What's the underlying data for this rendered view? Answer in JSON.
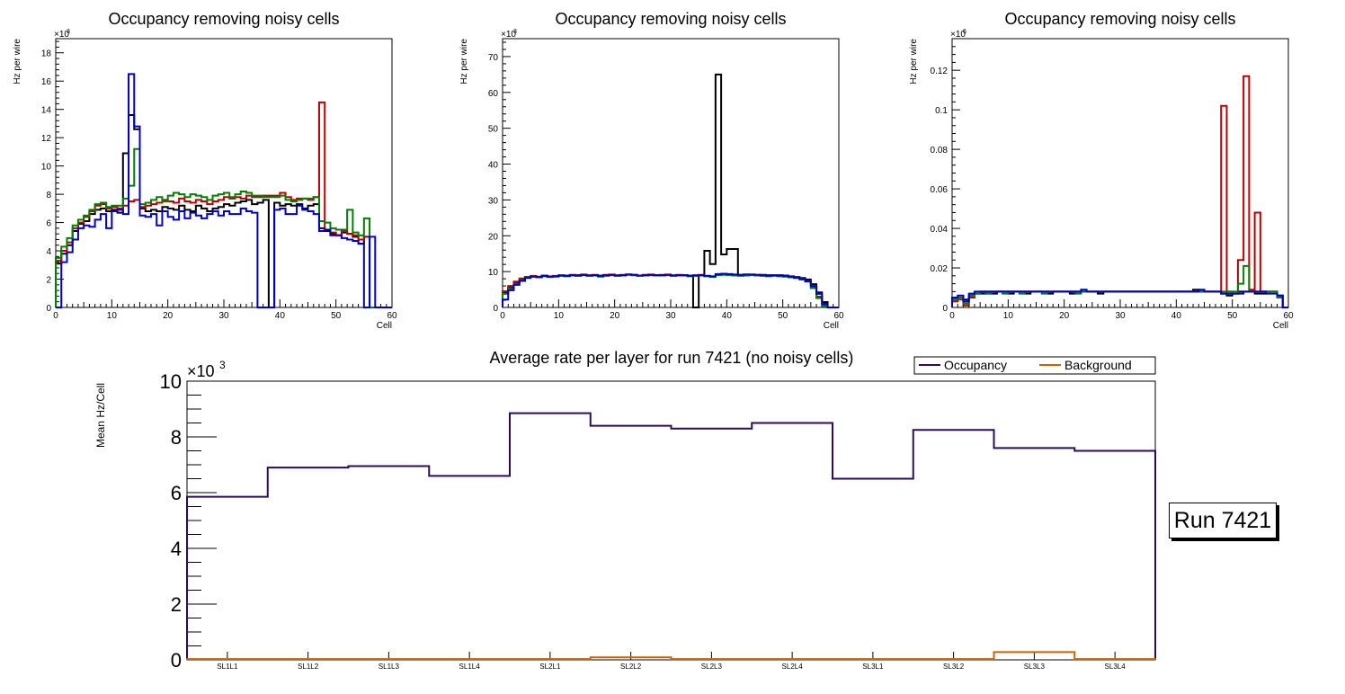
{
  "chart_data": [
    {
      "type": "step",
      "title": "Occupancy removing noisy cells",
      "xlabel": "Cell",
      "ylabel": "Hz per wire",
      "exponent_label": "×10",
      "exponent": "3",
      "xlim": [
        0,
        60
      ],
      "ylim": [
        0,
        19
      ],
      "xticks": [
        "0",
        "10",
        "20",
        "30",
        "40",
        "50",
        "60"
      ],
      "yticks": [
        "0",
        "2",
        "4",
        "6",
        "8",
        "10",
        "12",
        "14",
        "16",
        "18"
      ],
      "ytick_values": [
        0,
        2,
        4,
        6,
        8,
        10,
        12,
        14,
        16,
        18
      ],
      "series": [
        {
          "name": "layer1",
          "color": "#000000",
          "values": [
            3.1,
            3.8,
            4.4,
            5.4,
            5.9,
            6.1,
            6.6,
            6.9,
            7.0,
            6.8,
            6.9,
            6.7,
            10.9,
            13.6,
            12.6,
            7.0,
            6.8,
            6.9,
            6.8,
            7.1,
            7.0,
            6.9,
            7.2,
            6.9,
            6.8,
            7.2,
            7.0,
            6.8,
            7.0,
            7.1,
            7.3,
            7.2,
            7.4,
            7.5,
            7.6,
            7.3,
            7.4,
            7.6,
            0,
            7.4,
            7.2,
            7.3,
            7.2,
            7.3,
            7.0,
            7.2,
            7.3,
            5.6,
            5.4,
            5.2,
            5.1,
            5.3,
            5.2,
            5.0,
            4.5,
            5.0,
            0,
            0,
            0,
            0
          ]
        },
        {
          "name": "layer2",
          "color": "#c00000",
          "values": [
            3.3,
            4.0,
            4.6,
            5.6,
            6.0,
            6.4,
            6.8,
            7.2,
            7.3,
            7.0,
            7.1,
            7.0,
            7.2,
            7.5,
            7.6,
            7.1,
            7.2,
            7.3,
            7.4,
            7.6,
            7.5,
            7.4,
            7.7,
            7.5,
            7.4,
            7.6,
            7.5,
            7.3,
            7.5,
            7.6,
            7.8,
            7.7,
            7.8,
            7.7,
            7.9,
            7.8,
            7.8,
            7.9,
            7.9,
            7.9,
            8.1,
            7.8,
            7.6,
            7.7,
            7.7,
            7.6,
            7.8,
            14.5,
            5.5,
            5.3,
            5.1,
            5.4,
            5.2,
            5.1,
            4.8,
            5.0,
            0,
            0,
            0,
            0
          ]
        },
        {
          "name": "layer3",
          "color": "#008000",
          "values": [
            3.5,
            4.3,
            4.9,
            5.8,
            6.2,
            6.5,
            6.9,
            7.3,
            7.4,
            7.1,
            7.2,
            7.2,
            7.7,
            8.6,
            11.2,
            7.3,
            7.4,
            7.6,
            7.8,
            7.5,
            7.9,
            8.1,
            8.0,
            7.8,
            8.0,
            7.9,
            7.8,
            7.6,
            7.9,
            8.0,
            8.1,
            7.8,
            8.0,
            8.2,
            8.1,
            7.9,
            7.9,
            7.8,
            7.8,
            7.8,
            7.9,
            7.6,
            7.5,
            7.6,
            7.7,
            7.7,
            7.8,
            6.1,
            6.0,
            5.6,
            5.5,
            5.5,
            6.9,
            5.3,
            5.1,
            6.3,
            0,
            0,
            0,
            0
          ]
        },
        {
          "name": "layer4",
          "color": "#0000cc",
          "values": [
            0,
            3.2,
            3.9,
            4.8,
            5.6,
            5.8,
            5.7,
            6.2,
            6.6,
            5.6,
            6.8,
            6.9,
            6.6,
            16.5,
            12.8,
            6.5,
            6.4,
            6.6,
            5.8,
            6.8,
            6.4,
            6.2,
            6.8,
            6.3,
            6.7,
            6.5,
            6.3,
            6.6,
            6.8,
            6.5,
            6.8,
            6.6,
            6.6,
            7.0,
            6.8,
            6.7,
            0,
            0,
            0,
            6.9,
            7.0,
            6.6,
            6.6,
            7.2,
            6.9,
            6.8,
            6.6,
            5.4,
            5.5,
            5.1,
            5.1,
            4.9,
            4.8,
            4.7,
            4.5,
            0,
            5.0,
            0,
            0,
            0
          ]
        }
      ]
    },
    {
      "type": "step",
      "title": "Occupancy removing noisy cells",
      "xlabel": "Cell",
      "ylabel": "Hz per wire",
      "exponent_label": "×10",
      "exponent": "3",
      "xlim": [
        0,
        60
      ],
      "ylim": [
        0,
        75
      ],
      "xticks": [
        "0",
        "10",
        "20",
        "30",
        "40",
        "50",
        "60"
      ],
      "yticks": [
        "0",
        "10",
        "20",
        "30",
        "40",
        "50",
        "60",
        "70"
      ],
      "ytick_values": [
        0,
        10,
        20,
        30,
        40,
        50,
        60,
        70
      ],
      "series": [
        {
          "name": "layer1",
          "color": "#000000",
          "values": [
            4.0,
            5.5,
            6.8,
            7.8,
            8.5,
            8.7,
            8.5,
            8.8,
            8.6,
            8.7,
            8.9,
            8.8,
            9.0,
            9.0,
            9.1,
            8.9,
            9.0,
            8.8,
            9.0,
            9.1,
            8.9,
            9.0,
            9.2,
            9.1,
            8.9,
            9.0,
            9.1,
            9.0,
            9.0,
            9.1,
            8.9,
            9.0,
            9.0,
            8.8,
            0,
            8.9,
            15.8,
            12.1,
            65.0,
            14.8,
            16.3,
            16.3,
            9.1,
            9.2,
            9.1,
            9.0,
            9.1,
            9.0,
            8.9,
            9.0,
            8.9,
            8.7,
            8.5,
            8.2,
            7.8,
            6.5,
            4.2,
            1.5,
            0,
            0
          ]
        },
        {
          "name": "layer2",
          "color": "#c00000",
          "values": [
            4.5,
            6.0,
            7.2,
            8.1,
            8.5,
            8.8,
            8.6,
            8.9,
            8.7,
            8.8,
            9.0,
            8.9,
            9.1,
            9.0,
            9.2,
            9.0,
            9.1,
            8.9,
            9.1,
            9.2,
            9.0,
            9.1,
            9.2,
            9.0,
            8.9,
            9.1,
            9.2,
            9.0,
            9.1,
            9.2,
            9.0,
            9.1,
            9.0,
            8.9,
            9.0,
            9.1,
            8.8,
            8.6,
            9.2,
            9.3,
            9.2,
            9.1,
            9.0,
            9.1,
            9.2,
            9.1,
            9.0,
            8.9,
            9.0,
            8.9,
            8.8,
            8.6,
            8.4,
            8.0,
            7.4,
            5.8,
            3.0,
            0.5,
            0,
            0
          ]
        },
        {
          "name": "layer3",
          "color": "#008000",
          "values": [
            3.8,
            5.2,
            6.6,
            7.6,
            8.3,
            8.6,
            8.4,
            8.7,
            8.5,
            8.6,
            8.8,
            8.7,
            8.9,
            8.8,
            9.0,
            8.8,
            8.9,
            8.6,
            8.8,
            9.0,
            8.8,
            8.9,
            9.1,
            9.0,
            8.8,
            8.9,
            9.0,
            8.9,
            8.9,
            9.0,
            8.8,
            8.9,
            8.9,
            8.7,
            8.8,
            8.9,
            8.7,
            8.5,
            9.0,
            9.1,
            9.0,
            8.9,
            8.8,
            8.9,
            9.0,
            8.9,
            8.8,
            8.7,
            8.8,
            8.7,
            8.6,
            8.4,
            8.2,
            7.8,
            7.2,
            5.4,
            2.6,
            0.3,
            0,
            0
          ]
        },
        {
          "name": "layer4",
          "color": "#0000cc",
          "values": [
            2.2,
            4.8,
            6.3,
            7.4,
            8.2,
            8.6,
            8.5,
            8.8,
            8.6,
            8.7,
            8.9,
            8.8,
            9.0,
            8.9,
            9.1,
            8.9,
            9.0,
            8.8,
            9.0,
            9.1,
            8.9,
            9.0,
            9.2,
            9.1,
            8.9,
            9.0,
            9.1,
            9.0,
            9.0,
            9.1,
            8.9,
            9.0,
            9.0,
            8.8,
            8.9,
            9.0,
            8.8,
            8.7,
            9.3,
            9.4,
            9.3,
            9.2,
            9.1,
            9.2,
            9.2,
            9.1,
            9.0,
            8.9,
            9.0,
            8.9,
            8.8,
            8.6,
            8.3,
            7.9,
            7.3,
            6.0,
            3.8,
            1.0,
            0,
            0
          ]
        }
      ]
    },
    {
      "type": "step",
      "title": "Occupancy removing noisy cells",
      "xlabel": "Cell",
      "ylabel": "Hz per wire",
      "exponent_label": "×10",
      "exponent": "6",
      "xlim": [
        0,
        60
      ],
      "ylim": [
        0,
        0.136
      ],
      "xticks": [
        "0",
        "10",
        "20",
        "30",
        "40",
        "50",
        "60"
      ],
      "yticks": [
        "0",
        "0.02",
        "0.04",
        "0.06",
        "0.08",
        "0.1",
        "0.12"
      ],
      "ytick_values": [
        0,
        0.02,
        0.04,
        0.06,
        0.08,
        0.1,
        0.12
      ],
      "series": [
        {
          "name": "layer1",
          "color": "#000000",
          "values": [
            0.004,
            0.005,
            0.004,
            0.006,
            0.007,
            0.007,
            0.008,
            0.007,
            0.008,
            0.008,
            0.007,
            0.008,
            0.008,
            0.007,
            0.008,
            0.008,
            0.008,
            0.007,
            0.008,
            0.008,
            0.008,
            0.007,
            0.008,
            0.008,
            0.008,
            0.008,
            0.007,
            0.008,
            0.008,
            0.008,
            0.008,
            0.008,
            0.008,
            0.008,
            0.008,
            0.008,
            0.008,
            0.008,
            0.008,
            0.008,
            0.008,
            0.008,
            0.008,
            0.009,
            0.008,
            0.008,
            0.008,
            0.008,
            0.007,
            0.006,
            0.007,
            0.008,
            0.008,
            0.008,
            0.007,
            0.007,
            0.008,
            0.008,
            0.006,
            0
          ]
        },
        {
          "name": "layer2",
          "color": "#c00000",
          "values": [
            0.003,
            0.004,
            0.001,
            0.005,
            0.007,
            0.008,
            0.007,
            0.008,
            0.008,
            0.008,
            0.008,
            0.008,
            0.008,
            0.008,
            0.008,
            0.008,
            0.008,
            0.008,
            0.008,
            0.008,
            0.008,
            0.008,
            0.008,
            0.008,
            0.008,
            0.008,
            0.008,
            0.008,
            0.008,
            0.008,
            0.008,
            0.008,
            0.008,
            0.008,
            0.008,
            0.008,
            0.008,
            0.008,
            0.008,
            0.008,
            0.008,
            0.008,
            0.008,
            0.008,
            0.008,
            0.008,
            0.008,
            0.008,
            0.102,
            0.008,
            0.007,
            0.024,
            0.117,
            0.009,
            0.048,
            0.008,
            0.008,
            0.008,
            0.005,
            0
          ]
        },
        {
          "name": "layer3",
          "color": "#008000",
          "values": [
            0.004,
            0.005,
            0.002,
            0.006,
            0.007,
            0.008,
            0.007,
            0.008,
            0.008,
            0.007,
            0.008,
            0.008,
            0.007,
            0.008,
            0.008,
            0.008,
            0.007,
            0.008,
            0.008,
            0.008,
            0.008,
            0.008,
            0.007,
            0.008,
            0.008,
            0.008,
            0.008,
            0.008,
            0.008,
            0.008,
            0.008,
            0.008,
            0.008,
            0.008,
            0.008,
            0.008,
            0.008,
            0.008,
            0.008,
            0.008,
            0.008,
            0.008,
            0.008,
            0.008,
            0.008,
            0.008,
            0.008,
            0.008,
            0.008,
            0.008,
            0.008,
            0.012,
            0.021,
            0.008,
            0.008,
            0.008,
            0.008,
            0.008,
            0.005,
            0
          ]
        },
        {
          "name": "layer4",
          "color": "#0000cc",
          "values": [
            0.005,
            0.006,
            0.003,
            0.007,
            0.008,
            0.008,
            0.008,
            0.008,
            0.008,
            0.008,
            0.008,
            0.008,
            0.008,
            0.008,
            0.008,
            0.008,
            0.008,
            0.008,
            0.008,
            0.008,
            0.008,
            0.008,
            0.008,
            0.009,
            0.008,
            0.008,
            0.008,
            0.008,
            0.008,
            0.008,
            0.008,
            0.008,
            0.008,
            0.008,
            0.008,
            0.008,
            0.008,
            0.008,
            0.008,
            0.008,
            0.008,
            0.008,
            0.008,
            0.008,
            0.009,
            0.008,
            0.008,
            0.008,
            0.007,
            0.007,
            0.007,
            0.007,
            0.008,
            0.008,
            0.008,
            0.008,
            0.007,
            0.007,
            0.006,
            0
          ]
        }
      ]
    },
    {
      "type": "step",
      "title": "Average rate per layer for run 7421 (no noisy cells)",
      "xlabel": "",
      "ylabel": "Mean Hz/Cell",
      "exponent_label": "×10",
      "exponent": "3",
      "ylim": [
        0,
        10
      ],
      "yticks": [
        "0",
        "2",
        "4",
        "6",
        "8",
        "10"
      ],
      "ytick_values": [
        0,
        2,
        4,
        6,
        8,
        10
      ],
      "categories": [
        "SL1L1",
        "SL1L2",
        "SL1L3",
        "SL1L4",
        "SL2L1",
        "SL2L2",
        "SL2L3",
        "SL2L4",
        "SL3L1",
        "SL3L2",
        "SL3L3",
        "SL3L4"
      ],
      "legend": [
        "Occupancy",
        "Background"
      ],
      "series": [
        {
          "name": "Occupancy",
          "color": "#2d0a5e",
          "values": [
            5.85,
            6.9,
            6.95,
            6.6,
            8.85,
            8.4,
            8.3,
            8.5,
            6.5,
            8.25,
            7.6,
            7.5
          ]
        },
        {
          "name": "Background",
          "color": "#c86400",
          "values": [
            0.03,
            0.03,
            0.03,
            0.03,
            0.03,
            0.09,
            0.03,
            0.03,
            0.03,
            0.03,
            0.28,
            0.03
          ]
        }
      ],
      "run_label": "Run 7421"
    }
  ]
}
